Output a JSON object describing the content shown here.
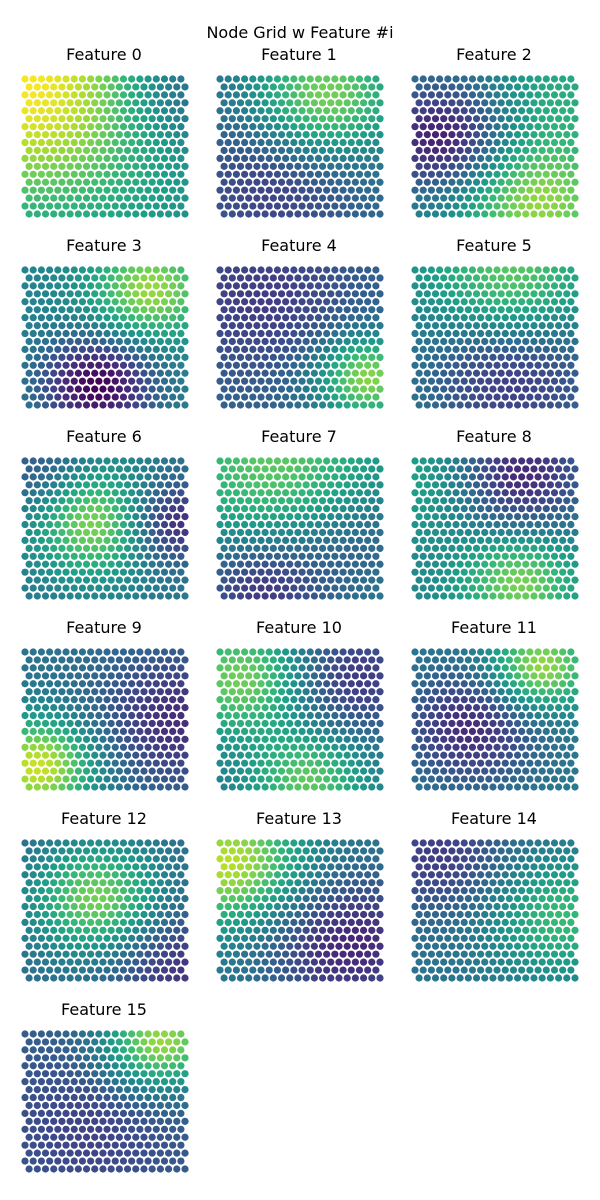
{
  "figure": {
    "suptitle": "Node Grid w Feature #i"
  },
  "colormap": {
    "name": "viridis",
    "stops": [
      "#440154",
      "#482878",
      "#3e4989",
      "#31688e",
      "#26828e",
      "#1f9e89",
      "#35b779",
      "#6ece58",
      "#b5de2b",
      "#fde725"
    ]
  },
  "chart_data": {
    "type": "scatter",
    "description_free": true,
    "grid": {
      "rows": 18,
      "cols": 20,
      "layout": "hexagonal-offset"
    },
    "value_range": [
      0,
      1
    ],
    "panels": [
      {
        "title": "Feature 0",
        "blobs": [
          {
            "cx": 0.05,
            "cy": 0.05,
            "amp": 0.55,
            "sig": 0.65
          },
          {
            "cx": 0.95,
            "cy": 0.05,
            "amp": -0.25,
            "sig": 0.35
          }
        ],
        "base": 0.45
      },
      {
        "title": "Feature 1",
        "blobs": [
          {
            "cx": 0.65,
            "cy": 0.15,
            "amp": 0.45,
            "sig": 0.32
          },
          {
            "cx": 0.35,
            "cy": 0.75,
            "amp": -0.2,
            "sig": 0.4
          }
        ],
        "base": 0.38
      },
      {
        "title": "Feature 2",
        "blobs": [
          {
            "cx": 0.18,
            "cy": 0.45,
            "amp": -0.4,
            "sig": 0.3
          },
          {
            "cx": 0.75,
            "cy": 0.9,
            "amp": 0.4,
            "sig": 0.35
          },
          {
            "cx": 0.9,
            "cy": 0.1,
            "amp": 0.15,
            "sig": 0.3
          }
        ],
        "base": 0.45
      },
      {
        "title": "Feature 3",
        "blobs": [
          {
            "cx": 0.78,
            "cy": 0.15,
            "amp": 0.4,
            "sig": 0.25
          },
          {
            "cx": 0.45,
            "cy": 0.85,
            "amp": -0.45,
            "sig": 0.25
          }
        ],
        "base": 0.45
      },
      {
        "title": "Feature 4",
        "blobs": [
          {
            "cx": 0.92,
            "cy": 0.8,
            "amp": 0.5,
            "sig": 0.22
          },
          {
            "cx": 0.25,
            "cy": 0.2,
            "amp": -0.15,
            "sig": 0.4
          }
        ],
        "base": 0.33
      },
      {
        "title": "Feature 5",
        "blobs": [
          {
            "cx": 0.6,
            "cy": 0.1,
            "amp": 0.35,
            "sig": 0.35
          },
          {
            "cx": 0.6,
            "cy": 0.75,
            "amp": -0.3,
            "sig": 0.4
          }
        ],
        "base": 0.45
      },
      {
        "title": "Feature 6",
        "blobs": [
          {
            "cx": 0.45,
            "cy": 0.45,
            "amp": 0.45,
            "sig": 0.28
          },
          {
            "cx": 0.9,
            "cy": 0.45,
            "amp": -0.35,
            "sig": 0.22
          },
          {
            "cx": 0.1,
            "cy": 0.1,
            "amp": -0.15,
            "sig": 0.25
          }
        ],
        "base": 0.4
      },
      {
        "title": "Feature 7",
        "blobs": [
          {
            "cx": 0.35,
            "cy": 0.05,
            "amp": 0.3,
            "sig": 0.45
          },
          {
            "cx": 0.25,
            "cy": 0.95,
            "amp": -0.3,
            "sig": 0.3
          },
          {
            "cx": 0.85,
            "cy": 0.6,
            "amp": -0.15,
            "sig": 0.3
          }
        ],
        "base": 0.45
      },
      {
        "title": "Feature 8",
        "blobs": [
          {
            "cx": 0.65,
            "cy": 0.1,
            "amp": -0.35,
            "sig": 0.3
          },
          {
            "cx": 0.65,
            "cy": 0.9,
            "amp": 0.35,
            "sig": 0.25
          },
          {
            "cx": 0.05,
            "cy": 0.15,
            "amp": 0.15,
            "sig": 0.3
          }
        ],
        "base": 0.45
      },
      {
        "title": "Feature 9",
        "blobs": [
          {
            "cx": 0.08,
            "cy": 0.85,
            "amp": 0.55,
            "sig": 0.25
          },
          {
            "cx": 0.95,
            "cy": 0.5,
            "amp": -0.25,
            "sig": 0.35
          }
        ],
        "base": 0.38
      },
      {
        "title": "Feature 10",
        "blobs": [
          {
            "cx": 0.15,
            "cy": 0.2,
            "amp": 0.4,
            "sig": 0.3
          },
          {
            "cx": 0.55,
            "cy": 0.95,
            "amp": 0.35,
            "sig": 0.25
          },
          {
            "cx": 0.8,
            "cy": 0.2,
            "amp": -0.25,
            "sig": 0.3
          }
        ],
        "base": 0.4
      },
      {
        "title": "Feature 11",
        "blobs": [
          {
            "cx": 0.78,
            "cy": 0.12,
            "amp": 0.45,
            "sig": 0.22
          },
          {
            "cx": 0.35,
            "cy": 0.55,
            "amp": -0.3,
            "sig": 0.3
          }
        ],
        "base": 0.42
      },
      {
        "title": "Feature 12",
        "blobs": [
          {
            "cx": 0.45,
            "cy": 0.42,
            "amp": 0.45,
            "sig": 0.28
          },
          {
            "cx": 0.95,
            "cy": 0.9,
            "amp": -0.2,
            "sig": 0.3
          }
        ],
        "base": 0.35
      },
      {
        "title": "Feature 13",
        "blobs": [
          {
            "cx": 0.05,
            "cy": 0.15,
            "amp": 0.5,
            "sig": 0.32
          },
          {
            "cx": 0.8,
            "cy": 0.75,
            "amp": -0.3,
            "sig": 0.35
          }
        ],
        "base": 0.4
      },
      {
        "title": "Feature 14",
        "blobs": [
          {
            "cx": 0.9,
            "cy": 0.55,
            "amp": 0.3,
            "sig": 0.3
          },
          {
            "cx": 0.15,
            "cy": 0.1,
            "amp": -0.2,
            "sig": 0.3
          }
        ],
        "base": 0.38
      },
      {
        "title": "Feature 15",
        "blobs": [
          {
            "cx": 0.85,
            "cy": 0.05,
            "amp": 0.55,
            "sig": 0.25
          },
          {
            "cx": 0.4,
            "cy": 0.7,
            "amp": -0.1,
            "sig": 0.35
          }
        ],
        "base": 0.3
      }
    ]
  }
}
